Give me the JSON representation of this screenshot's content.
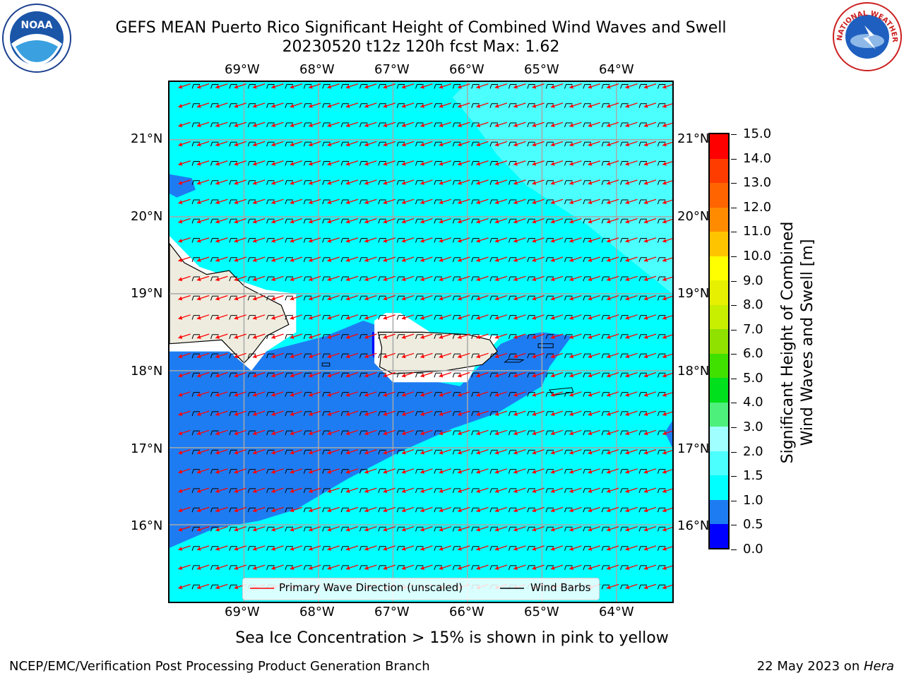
{
  "title": {
    "line1": "GEFS MEAN Puerto Rico Significant Height of Combined Wind Waves and Swell",
    "line2": "20230520 t12z 120h fcst   Max: 1.62"
  },
  "logos": {
    "left": {
      "icon": "noaa-logo",
      "text": "NOAA"
    },
    "right": {
      "icon": "nws-logo",
      "text": "NATIONAL WEATHER SERVICE"
    }
  },
  "chart_data": {
    "type": "heatmap",
    "variable": "Significant Height of Combined Wind Waves and Swell",
    "units": "m",
    "max": 1.62,
    "lon_ticks": [
      "69°W",
      "68°W",
      "67°W",
      "66°W",
      "65°W",
      "64°W"
    ],
    "lat_ticks": [
      "21°N",
      "20°N",
      "19°N",
      "18°N",
      "17°N",
      "16°N"
    ],
    "lon_range": [
      -70.0,
      -63.25
    ],
    "lat_range": [
      15.0,
      21.75
    ],
    "colorbar": {
      "label": "Significant Height of Combined Wind Waves and Swell [m]",
      "label_line1": "Significant Height of Combined",
      "label_line2": "Wind Waves and Swell [m]",
      "ticks": [
        "0.0",
        "0.5",
        "1.0",
        "1.5",
        "2.0",
        "3.0",
        "4.0",
        "5.0",
        "6.0",
        "7.0",
        "8.0",
        "9.0",
        "10.0",
        "11.0",
        "12.0",
        "13.0",
        "14.0",
        "15.0"
      ],
      "levels": [
        0.0,
        0.5,
        1.0,
        1.5,
        2.0,
        3.0,
        4.0,
        5.0,
        6.0,
        7.0,
        8.0,
        9.0,
        10.0,
        11.0,
        12.0,
        13.0,
        14.0,
        15.0
      ],
      "colors": [
        "#0000ff",
        "#1e7cf2",
        "#00ffff",
        "#4cffff",
        "#a0ffff",
        "#4cf07a",
        "#00e01c",
        "#40e000",
        "#90e000",
        "#c8ee00",
        "#e6f000",
        "#ffff00",
        "#ffc400",
        "#ff8c00",
        "#ff6400",
        "#ff3c00",
        "#ff0000"
      ]
    },
    "legend": [
      {
        "label": "Primary Wave Direction (unscaled)",
        "color": "#ff0000"
      },
      {
        "label": "Wind Barbs",
        "color": "#000000"
      }
    ],
    "grid": true
  },
  "footer": {
    "note": "Sea Ice Concentration > 15% is shown in pink to yellow",
    "left": "NCEP/EMC/Verification Post Processing Product Generation Branch",
    "right_prefix": "22 May 2023 on ",
    "right_host": "Hera"
  }
}
